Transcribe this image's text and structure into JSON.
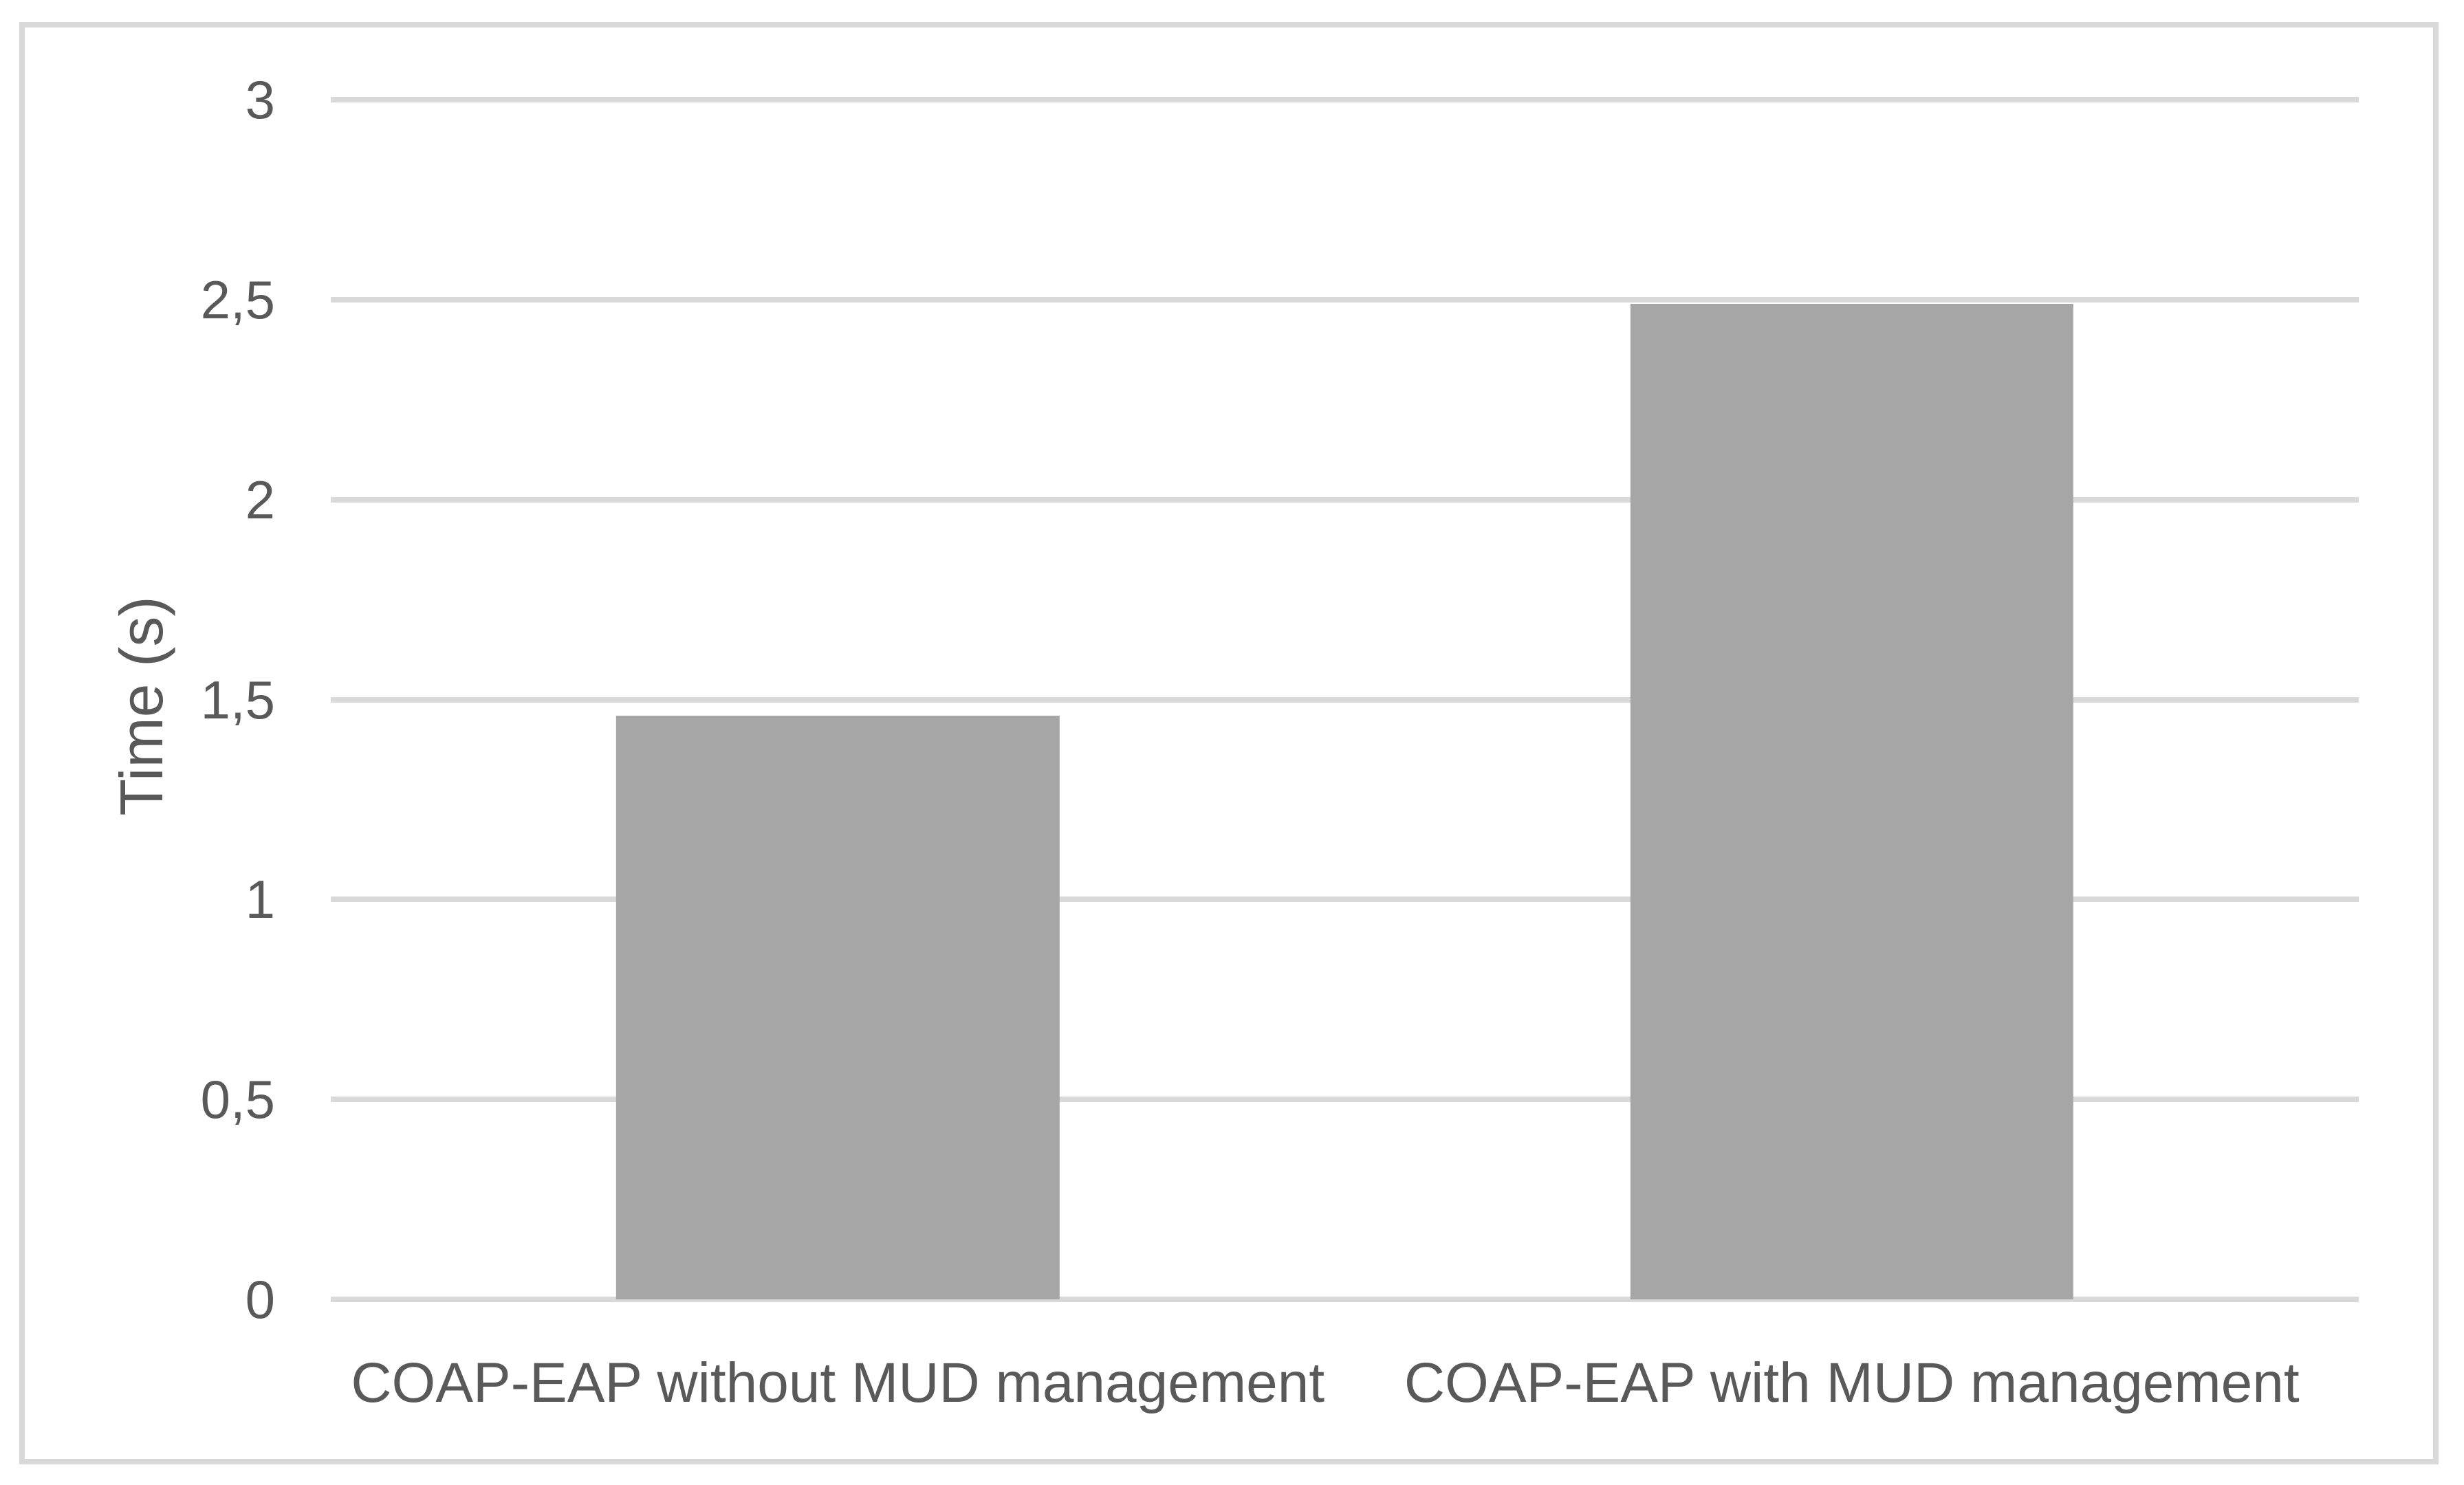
{
  "figure": {
    "kind": "embedded-chart-figure",
    "background": "#ffffff",
    "border_color": "#d9d9d9"
  },
  "chart_data": {
    "type": "bar",
    "categories": [
      "COAP-EAP without MUD management",
      "COAP-EAP with MUD management"
    ],
    "values": [
      1.46,
      2.49
    ],
    "title": "",
    "xlabel": "",
    "ylabel": "Time (s)",
    "ylim": [
      0,
      3
    ],
    "ytick_step": 0.5,
    "ytick_labels": [
      "0",
      "0,5",
      "1",
      "1,5",
      "2",
      "2,5",
      "3"
    ],
    "decimal_separator": ",",
    "grid": true,
    "legend": "none",
    "bar_color": "#a6a6a6",
    "gridline_color": "#d9d9d9",
    "text_color": "#595959"
  }
}
